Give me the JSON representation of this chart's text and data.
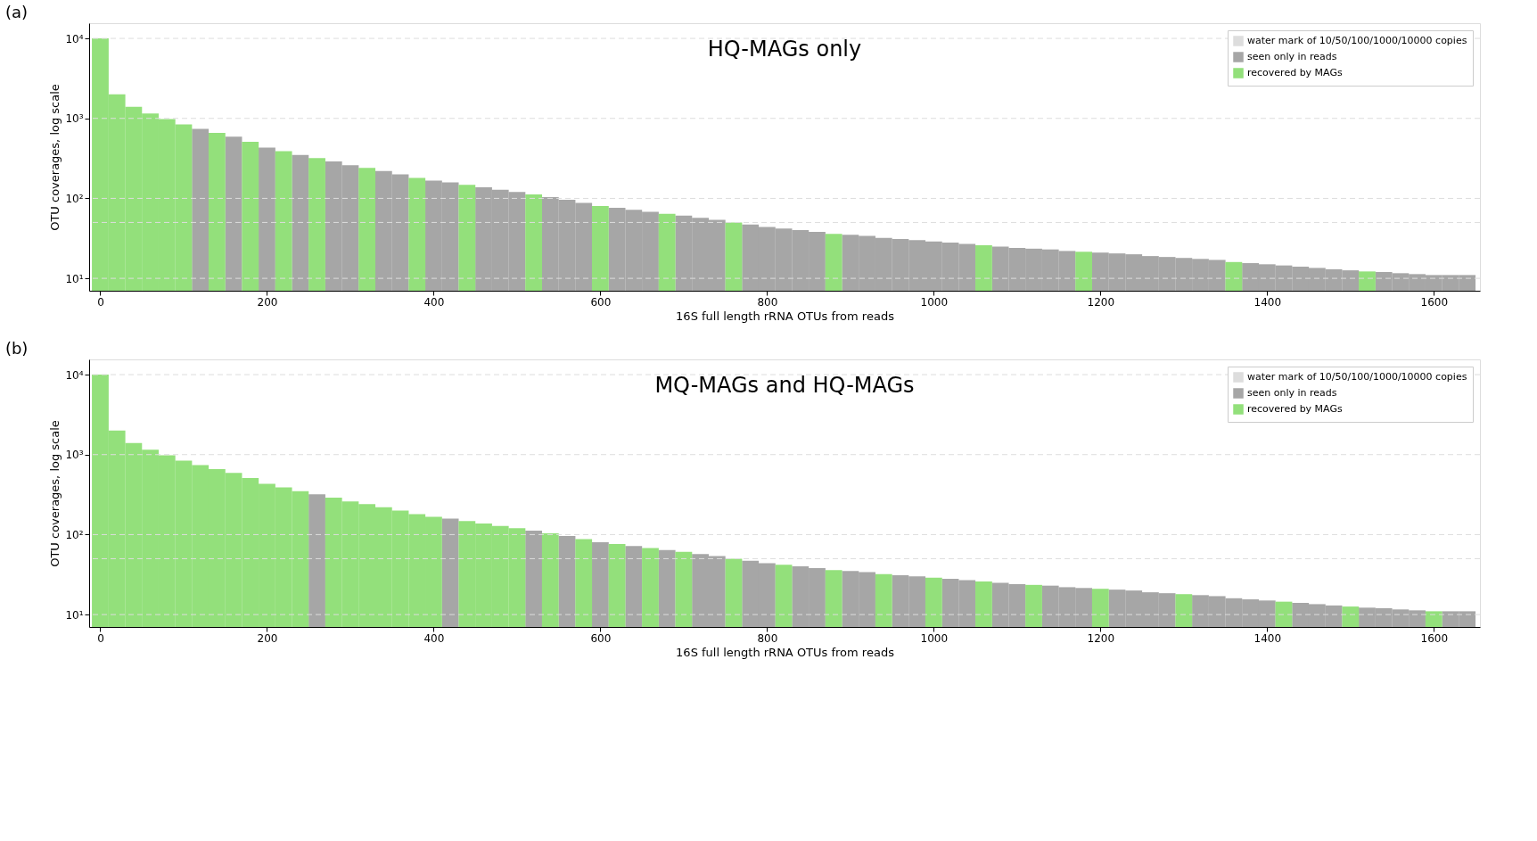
{
  "chart_data": [
    {
      "type": "bar",
      "title": "(a)",
      "subtitle": "HQ-MAGs only",
      "xlabel": "16S full length rRNA OTUs from reads",
      "ylabel": "OTU coverages, log scale",
      "log": true,
      "legend": "top right",
      "grid": false,
      "xlim": [
        -8,
        1650
      ],
      "xticks": [
        0,
        200,
        400,
        600,
        800,
        1000,
        1200,
        1400,
        1600
      ],
      "ylim": [
        7,
        15500
      ],
      "yticks": [
        {
          "value": 10,
          "label": "10¹"
        },
        {
          "value": 100,
          "label": "10²"
        },
        {
          "value": 1000,
          "label": "10³"
        },
        {
          "value": 10000,
          "label": "10⁴"
        }
      ],
      "ref_lines": [
        {
          "axis": "y",
          "value": 10,
          "label": "water mark of 10/50/100/1000/10000 copies",
          "color": "#dddddd",
          "line_style": "dashed"
        },
        {
          "axis": "y",
          "value": 50,
          "color": "#dddddd",
          "line_style": "dashed"
        },
        {
          "axis": "y",
          "value": 100,
          "color": "#dddddd",
          "line_style": "dashed"
        },
        {
          "axis": "y",
          "value": 1000,
          "color": "#dddddd",
          "line_style": "dashed"
        },
        {
          "axis": "y",
          "value": 10000,
          "color": "#dddddd",
          "line_style": "dashed"
        }
      ],
      "series": [
        {
          "name": "seen only in reads",
          "color": "#a6a6a6",
          "x": [
            120,
            160,
            200,
            240,
            280,
            300,
            340,
            360,
            400,
            420,
            460,
            480,
            500,
            540,
            560,
            580,
            620,
            640,
            660,
            700,
            720,
            740,
            780,
            800,
            820,
            840,
            860,
            900,
            920,
            940,
            960,
            980,
            1000,
            1020,
            1040,
            1080,
            1100,
            1120,
            1140,
            1160,
            1200,
            1220,
            1240,
            1260,
            1280,
            1300,
            1320,
            1340,
            1380,
            1400,
            1420,
            1440,
            1460,
            1480,
            1500,
            1540,
            1560,
            1580,
            1600,
            1620,
            1640
          ],
          "values": [
            740,
            590,
            430,
            350,
            290,
            260,
            220,
            200,
            167,
            158,
            138,
            128,
            120,
            104,
            96,
            88,
            76,
            72,
            68,
            61,
            57,
            54,
            47,
            44,
            42,
            40,
            38,
            35,
            34,
            32,
            31,
            30,
            29,
            28,
            27,
            25,
            24,
            23.5,
            23,
            22,
            21,
            20.5,
            20,
            19,
            18.5,
            18,
            17.5,
            17,
            15.5,
            15,
            14.5,
            14,
            13.5,
            13,
            12.6,
            12,
            11.6,
            11.3,
            11,
            11,
            11
          ]
        },
        {
          "name": "recovered by MAGs",
          "color": "#93e07b",
          "x": [
            0,
            20,
            40,
            60,
            80,
            100,
            140,
            180,
            220,
            260,
            320,
            380,
            440,
            520,
            600,
            680,
            760,
            880,
            1060,
            1180,
            1360,
            1520
          ],
          "values": [
            10000,
            2000,
            1400,
            1150,
            980,
            840,
            660,
            510,
            390,
            320,
            240,
            180,
            148,
            112,
            80,
            64,
            50,
            36,
            26,
            21.5,
            16,
            12.2
          ]
        }
      ]
    },
    {
      "type": "bar",
      "title": "(b)",
      "subtitle": "MQ-MAGs and HQ-MAGs",
      "xlabel": "16S full length rRNA OTUs from reads",
      "ylabel": "OTU coverages, log scale",
      "log": true,
      "legend": "top right",
      "grid": false,
      "xlim": [
        -8,
        1650
      ],
      "xticks": [
        0,
        200,
        400,
        600,
        800,
        1000,
        1200,
        1400,
        1600
      ],
      "ylim": [
        7,
        15500
      ],
      "yticks": [
        {
          "value": 10,
          "label": "10¹"
        },
        {
          "value": 100,
          "label": "10²"
        },
        {
          "value": 1000,
          "label": "10³"
        },
        {
          "value": 10000,
          "label": "10⁴"
        }
      ],
      "ref_lines": [
        {
          "axis": "y",
          "value": 10,
          "label": "water mark of 10/50/100/1000/10000 copies",
          "color": "#dddddd",
          "line_style": "dashed"
        },
        {
          "axis": "y",
          "value": 50,
          "color": "#dddddd",
          "line_style": "dashed"
        },
        {
          "axis": "y",
          "value": 100,
          "color": "#dddddd",
          "line_style": "dashed"
        },
        {
          "axis": "y",
          "value": 1000,
          "color": "#dddddd",
          "line_style": "dashed"
        },
        {
          "axis": "y",
          "value": 10000,
          "color": "#dddddd",
          "line_style": "dashed"
        }
      ],
      "series": [
        {
          "name": "seen only in reads",
          "color": "#a6a6a6",
          "x": [
            260,
            420,
            520,
            560,
            600,
            640,
            680,
            720,
            740,
            780,
            800,
            840,
            860,
            900,
            920,
            960,
            980,
            1020,
            1040,
            1080,
            1100,
            1140,
            1160,
            1180,
            1220,
            1240,
            1260,
            1280,
            1320,
            1340,
            1360,
            1380,
            1400,
            1440,
            1460,
            1480,
            1520,
            1540,
            1560,
            1580,
            1620,
            1640
          ],
          "values": [
            320,
            158,
            112,
            96,
            80,
            72,
            64,
            57,
            54,
            47,
            44,
            40,
            38,
            35,
            34,
            31,
            30,
            28,
            27,
            25,
            24,
            23,
            22,
            21.5,
            20.5,
            20,
            19,
            18.5,
            17.5,
            17,
            16,
            15.5,
            15,
            14,
            13.5,
            13,
            12.2,
            12,
            11.6,
            11.3,
            11,
            11
          ]
        },
        {
          "name": "recovered by MAGs",
          "color": "#93e07b",
          "x": [
            0,
            20,
            40,
            60,
            80,
            100,
            120,
            140,
            160,
            180,
            200,
            220,
            240,
            280,
            300,
            320,
            340,
            360,
            380,
            400,
            440,
            460,
            480,
            500,
            540,
            580,
            620,
            660,
            700,
            760,
            820,
            880,
            940,
            1000,
            1060,
            1120,
            1200,
            1300,
            1420,
            1500,
            1600
          ],
          "values": [
            10000,
            2000,
            1400,
            1150,
            980,
            840,
            740,
            660,
            590,
            510,
            430,
            390,
            350,
            290,
            260,
            240,
            220,
            200,
            180,
            167,
            148,
            138,
            128,
            120,
            104,
            88,
            76,
            68,
            61,
            50,
            42,
            36,
            32,
            29,
            26,
            23.5,
            21,
            18,
            14.5,
            12.6,
            11
          ]
        }
      ]
    }
  ]
}
